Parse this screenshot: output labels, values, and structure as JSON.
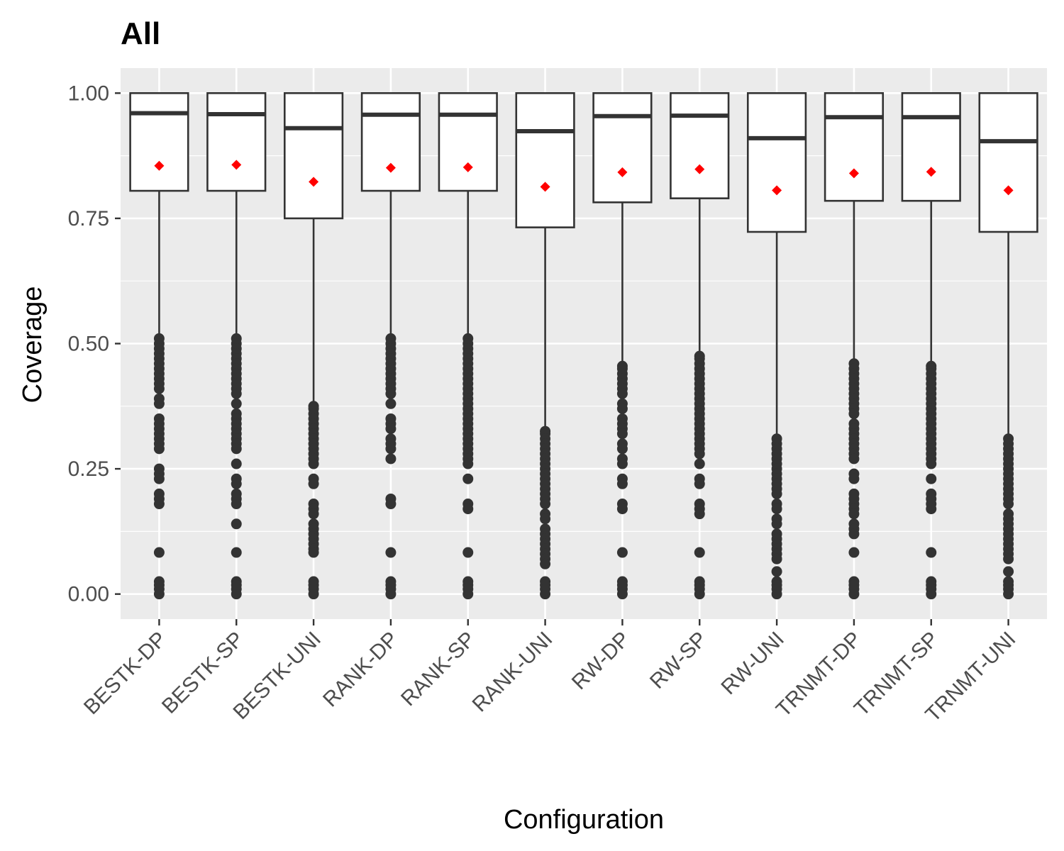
{
  "chart_data": {
    "type": "boxplot",
    "title": "All",
    "xlabel": "Configuration",
    "ylabel": "Coverage",
    "ylim": [
      -0.05,
      1.05
    ],
    "y_ticks": [
      "0.00",
      "0.25",
      "0.50",
      "0.75",
      "1.00"
    ],
    "grid": true,
    "colors": {
      "panel_background": "#ebebeb",
      "gridline": "#ffffff",
      "box_stroke": "#333333",
      "box_fill": "#ffffff",
      "outlier": "#333333",
      "mean_marker": "#ff0000"
    },
    "categories": [
      "BESTK-DP",
      "BESTK-SP",
      "BESTK-UNI",
      "RANK-DP",
      "RANK-SP",
      "RANK-UNI",
      "RW-DP",
      "RW-SP",
      "RW-UNI",
      "TRNMT-DP",
      "TRNMT-SP",
      "TRNMT-UNI"
    ],
    "boxes": [
      {
        "category": "BESTK-DP",
        "q1": 0.805,
        "median": 0.96,
        "q3": 1.0,
        "whisker_low": 0.52,
        "whisker_high": 1.0,
        "mean": 0.855,
        "outliers": [
          0.51,
          0.5,
          0.49,
          0.48,
          0.47,
          0.46,
          0.45,
          0.44,
          0.43,
          0.42,
          0.41,
          0.39,
          0.38,
          0.35,
          0.34,
          0.33,
          0.32,
          0.31,
          0.3,
          0.29,
          0.25,
          0.24,
          0.23,
          0.2,
          0.19,
          0.18,
          0.083,
          0.025,
          0.018,
          0.01,
          0.0
        ]
      },
      {
        "category": "BESTK-SP",
        "q1": 0.805,
        "median": 0.958,
        "q3": 1.0,
        "whisker_low": 0.52,
        "whisker_high": 1.0,
        "mean": 0.857,
        "outliers": [
          0.51,
          0.5,
          0.49,
          0.48,
          0.47,
          0.46,
          0.45,
          0.44,
          0.43,
          0.42,
          0.41,
          0.4,
          0.38,
          0.36,
          0.35,
          0.34,
          0.33,
          0.32,
          0.31,
          0.3,
          0.29,
          0.26,
          0.23,
          0.22,
          0.2,
          0.19,
          0.18,
          0.14,
          0.083,
          0.025,
          0.018,
          0.01,
          0.0
        ]
      },
      {
        "category": "BESTK-UNI",
        "q1": 0.75,
        "median": 0.93,
        "q3": 1.0,
        "whisker_low": 0.38,
        "whisker_high": 1.0,
        "mean": 0.823,
        "outliers": [
          0.375,
          0.37,
          0.36,
          0.35,
          0.34,
          0.33,
          0.32,
          0.31,
          0.3,
          0.29,
          0.28,
          0.27,
          0.26,
          0.23,
          0.22,
          0.18,
          0.17,
          0.16,
          0.14,
          0.13,
          0.12,
          0.11,
          0.1,
          0.09,
          0.083,
          0.025,
          0.018,
          0.01,
          0.0
        ]
      },
      {
        "category": "RANK-DP",
        "q1": 0.805,
        "median": 0.957,
        "q3": 1.0,
        "whisker_low": 0.52,
        "whisker_high": 1.0,
        "mean": 0.851,
        "outliers": [
          0.51,
          0.5,
          0.49,
          0.48,
          0.47,
          0.46,
          0.45,
          0.44,
          0.43,
          0.42,
          0.41,
          0.4,
          0.38,
          0.35,
          0.34,
          0.33,
          0.31,
          0.3,
          0.29,
          0.27,
          0.19,
          0.18,
          0.083,
          0.025,
          0.018,
          0.01,
          0.0
        ]
      },
      {
        "category": "RANK-SP",
        "q1": 0.805,
        "median": 0.957,
        "q3": 1.0,
        "whisker_low": 0.52,
        "whisker_high": 1.0,
        "mean": 0.852,
        "outliers": [
          0.51,
          0.5,
          0.49,
          0.48,
          0.47,
          0.46,
          0.45,
          0.44,
          0.43,
          0.42,
          0.41,
          0.4,
          0.39,
          0.38,
          0.37,
          0.36,
          0.35,
          0.34,
          0.33,
          0.32,
          0.31,
          0.3,
          0.29,
          0.28,
          0.27,
          0.26,
          0.23,
          0.18,
          0.17,
          0.083,
          0.025,
          0.018,
          0.01,
          0.0
        ]
      },
      {
        "category": "RANK-UNI",
        "q1": 0.732,
        "median": 0.924,
        "q3": 1.0,
        "whisker_low": 0.33,
        "whisker_high": 1.0,
        "mean": 0.813,
        "outliers": [
          0.325,
          0.32,
          0.31,
          0.3,
          0.29,
          0.28,
          0.27,
          0.26,
          0.25,
          0.24,
          0.23,
          0.22,
          0.21,
          0.2,
          0.19,
          0.18,
          0.16,
          0.15,
          0.13,
          0.12,
          0.11,
          0.1,
          0.09,
          0.08,
          0.07,
          0.06,
          0.025,
          0.018,
          0.01,
          0.0
        ]
      },
      {
        "category": "RW-DP",
        "q1": 0.782,
        "median": 0.954,
        "q3": 1.0,
        "whisker_low": 0.46,
        "whisker_high": 1.0,
        "mean": 0.842,
        "outliers": [
          0.455,
          0.45,
          0.44,
          0.43,
          0.42,
          0.41,
          0.4,
          0.38,
          0.37,
          0.35,
          0.34,
          0.33,
          0.32,
          0.3,
          0.29,
          0.27,
          0.26,
          0.23,
          0.22,
          0.18,
          0.17,
          0.083,
          0.025,
          0.018,
          0.01,
          0.0
        ]
      },
      {
        "category": "RW-SP",
        "q1": 0.79,
        "median": 0.955,
        "q3": 1.0,
        "whisker_low": 0.48,
        "whisker_high": 1.0,
        "mean": 0.848,
        "outliers": [
          0.475,
          0.47,
          0.46,
          0.45,
          0.44,
          0.43,
          0.42,
          0.41,
          0.4,
          0.39,
          0.38,
          0.37,
          0.36,
          0.35,
          0.34,
          0.33,
          0.32,
          0.31,
          0.3,
          0.29,
          0.28,
          0.26,
          0.23,
          0.22,
          0.18,
          0.17,
          0.16,
          0.083,
          0.025,
          0.018,
          0.01,
          0.0
        ]
      },
      {
        "category": "RW-UNI",
        "q1": 0.723,
        "median": 0.91,
        "q3": 1.0,
        "whisker_low": 0.31,
        "whisker_high": 1.0,
        "mean": 0.806,
        "outliers": [
          0.31,
          0.3,
          0.29,
          0.28,
          0.27,
          0.26,
          0.25,
          0.24,
          0.23,
          0.22,
          0.21,
          0.2,
          0.18,
          0.17,
          0.15,
          0.14,
          0.12,
          0.11,
          0.1,
          0.09,
          0.08,
          0.07,
          0.045,
          0.025,
          0.018,
          0.01,
          0.0
        ]
      },
      {
        "category": "TRNMT-DP",
        "q1": 0.785,
        "median": 0.952,
        "q3": 1.0,
        "whisker_low": 0.47,
        "whisker_high": 1.0,
        "mean": 0.84,
        "outliers": [
          0.46,
          0.45,
          0.44,
          0.43,
          0.42,
          0.41,
          0.4,
          0.39,
          0.38,
          0.37,
          0.36,
          0.34,
          0.33,
          0.32,
          0.31,
          0.3,
          0.29,
          0.28,
          0.27,
          0.24,
          0.23,
          0.2,
          0.19,
          0.18,
          0.17,
          0.16,
          0.14,
          0.13,
          0.12,
          0.083,
          0.025,
          0.018,
          0.01,
          0.0
        ]
      },
      {
        "category": "TRNMT-SP",
        "q1": 0.785,
        "median": 0.952,
        "q3": 1.0,
        "whisker_low": 0.46,
        "whisker_high": 1.0,
        "mean": 0.843,
        "outliers": [
          0.455,
          0.45,
          0.44,
          0.43,
          0.42,
          0.41,
          0.4,
          0.39,
          0.38,
          0.37,
          0.36,
          0.35,
          0.34,
          0.33,
          0.32,
          0.31,
          0.3,
          0.29,
          0.28,
          0.27,
          0.26,
          0.23,
          0.2,
          0.19,
          0.18,
          0.17,
          0.083,
          0.025,
          0.018,
          0.01,
          0.0
        ]
      },
      {
        "category": "TRNMT-UNI",
        "q1": 0.723,
        "median": 0.904,
        "q3": 1.0,
        "whisker_low": 0.31,
        "whisker_high": 1.0,
        "mean": 0.806,
        "outliers": [
          0.31,
          0.3,
          0.29,
          0.28,
          0.27,
          0.26,
          0.25,
          0.24,
          0.23,
          0.22,
          0.21,
          0.2,
          0.19,
          0.18,
          0.16,
          0.15,
          0.14,
          0.13,
          0.12,
          0.11,
          0.1,
          0.09,
          0.08,
          0.07,
          0.045,
          0.025,
          0.018,
          0.01,
          0.0
        ]
      }
    ]
  }
}
